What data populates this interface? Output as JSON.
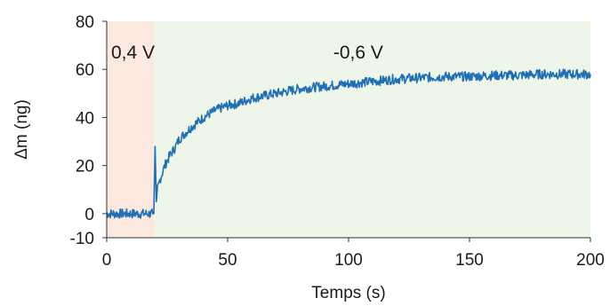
{
  "chart_data": {
    "type": "line",
    "title": "",
    "xlabel": "Temps (s)",
    "ylabel": "Δm (ng)",
    "xlim": [
      0,
      200
    ],
    "ylim": [
      -10,
      80
    ],
    "x_ticks": [
      0,
      50,
      100,
      150,
      200
    ],
    "y_ticks": [
      -10,
      0,
      20,
      40,
      60,
      80
    ],
    "grid": false,
    "legend": "none",
    "regions": [
      {
        "label": "0,4 V",
        "x_start": 0,
        "x_end": 19.5,
        "color": "#fbe8de"
      },
      {
        "label": "-0,6 V",
        "x_start": 19.5,
        "x_end": 200,
        "color": "#eef6ea"
      }
    ],
    "series": [
      {
        "color": "#1f6fb5",
        "x": [
          0,
          5,
          10,
          15,
          19,
          19.5,
          20,
          20.5,
          21,
          22,
          24,
          26,
          28,
          30,
          35,
          40,
          45,
          50,
          55,
          60,
          70,
          80,
          90,
          100,
          110,
          120,
          130,
          140,
          150,
          160,
          170,
          180,
          190,
          200
        ],
        "y": [
          0,
          0,
          0,
          0,
          0,
          0,
          28,
          5,
          10,
          14,
          20,
          24,
          27,
          31,
          36,
          40,
          43,
          45,
          46,
          48,
          50,
          52,
          53,
          54,
          55,
          56,
          56.5,
          57,
          57,
          57.5,
          57.5,
          58,
          58,
          58
        ]
      }
    ]
  }
}
